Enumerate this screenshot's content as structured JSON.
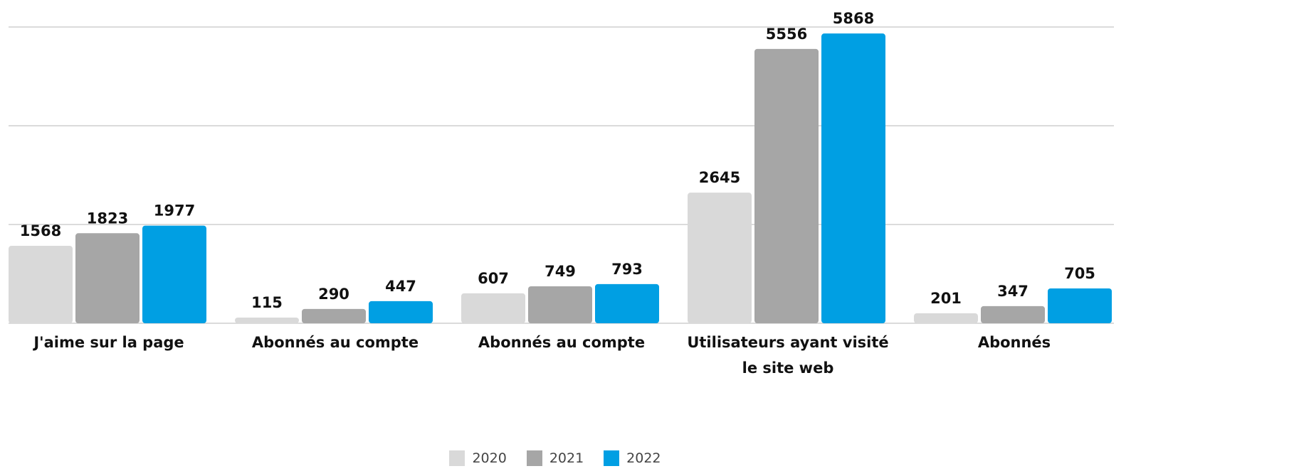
{
  "chart_data": {
    "type": "bar",
    "categories": [
      "J'aime sur la page",
      "Abonnés au compte",
      "Abonnés au compte",
      "Utilisateurs ayant visité le site web",
      "Abonnés"
    ],
    "series": [
      {
        "name": "2020",
        "color": "#d9d9d9",
        "values": [
          1568,
          115,
          607,
          2645,
          201
        ]
      },
      {
        "name": "2021",
        "color": "#a6a6a6",
        "values": [
          1823,
          290,
          749,
          5556,
          347
        ]
      },
      {
        "name": "2022",
        "color": "#009fe3",
        "values": [
          1977,
          447,
          793,
          5868,
          705
        ]
      }
    ],
    "ylim": [
      0,
      6000
    ],
    "yticks": [
      0,
      2000,
      4000,
      6000
    ],
    "grid": true,
    "legend": "bottom"
  }
}
